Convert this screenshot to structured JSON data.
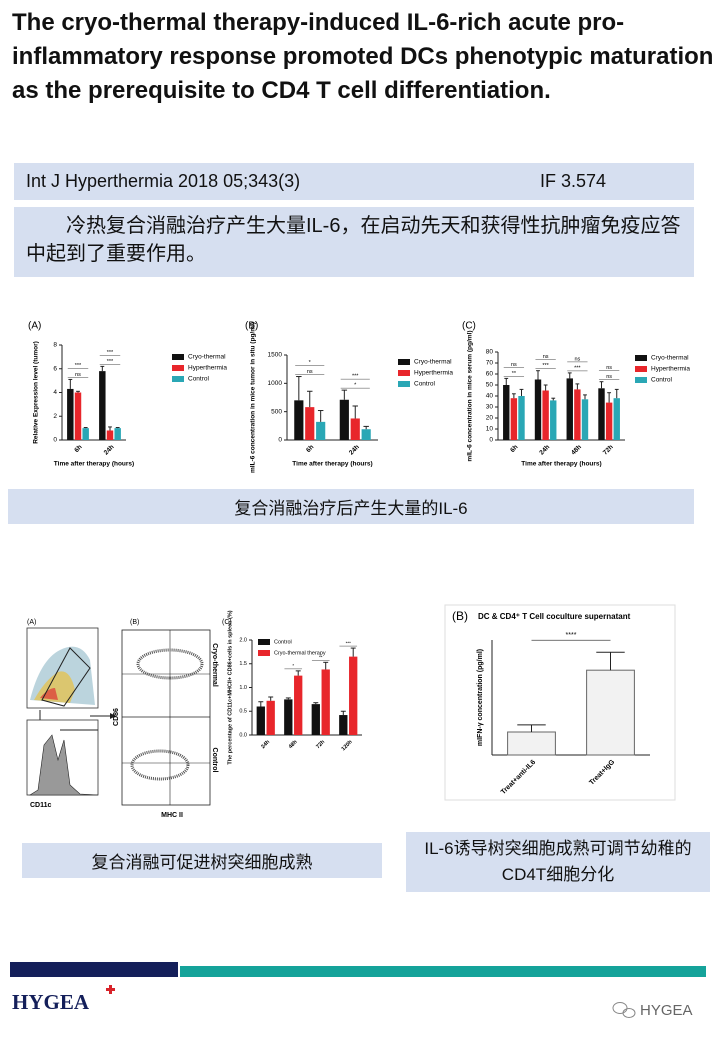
{
  "title": "The cryo-thermal therapy-induced IL-6-rich acute pro-inflammatory response promoted DCs phenotypic maturation as the prerequisite to CD4 T cell differentiation.",
  "citation": {
    "journal": "Int J Hyperthermia 2018 05;343(3)",
    "impact": "IF 3.574"
  },
  "summary": "冷热复合消融治疗产生大量IL-6，在启动先天和获得性抗肿瘤免疫应答中起到了重要作用。",
  "figure1": {
    "chart_data": [
      {
        "type": "bar",
        "panel_label": "(A)",
        "y_label": "Relative Expression level (tumor)",
        "x_label": "Time after therapy (hours)",
        "categories": [
          "6h",
          "24h"
        ],
        "series": [
          {
            "name": "Cryo-thermal",
            "color": "#111111",
            "values": [
              4.3,
              5.8
            ],
            "errors": [
              0.8,
              0.4
            ]
          },
          {
            "name": "Hyperthermia",
            "color": "#e8262b",
            "values": [
              4.0,
              0.8
            ],
            "errors": [
              0.1,
              0.3
            ]
          },
          {
            "name": "Control",
            "color": "#2aa7b5",
            "values": [
              1.0,
              1.0
            ],
            "errors": [
              0.05,
              0.05
            ]
          }
        ],
        "ylim": [
          0,
          8
        ],
        "yticks": [
          0,
          2,
          4,
          6,
          8
        ],
        "significance": [
          [
            "ns",
            "***"
          ],
          [
            "***",
            "***"
          ]
        ]
      },
      {
        "type": "bar",
        "panel_label": "(B)",
        "y_label": "mIL-6 concentration in mice tumor in situ (pg/ml)",
        "x_label": "Time after therapy (hours)",
        "categories": [
          "6h",
          "24h"
        ],
        "series": [
          {
            "name": "Cryo-thermal",
            "color": "#111111",
            "values": [
              700,
              710
            ],
            "errors": [
              420,
              170
            ]
          },
          {
            "name": "Hyperthermia",
            "color": "#e8262b",
            "values": [
              580,
              380
            ],
            "errors": [
              280,
              220
            ]
          },
          {
            "name": "Control",
            "color": "#2aa7b5",
            "values": [
              320,
              190
            ],
            "errors": [
              200,
              50
            ]
          }
        ],
        "ylim": [
          0,
          1500
        ],
        "yticks": [
          0,
          500,
          1000,
          1500
        ],
        "significance": [
          [
            "ns",
            "*"
          ],
          [
            "*",
            "***"
          ]
        ]
      },
      {
        "type": "bar",
        "panel_label": "(C)",
        "y_label": "mIL-6 concentration in mice serum (pg/ml)",
        "x_label": "Time after therapy (hours)",
        "categories": [
          "6h",
          "24h",
          "48h",
          "72h"
        ],
        "series": [
          {
            "name": "Cryo-thermal",
            "color": "#111111",
            "values": [
              50,
              55,
              56,
              47
            ],
            "errors": [
              6,
              8,
              5,
              6
            ]
          },
          {
            "name": "Hyperthermia",
            "color": "#e8262b",
            "values": [
              38,
              45,
              46,
              34
            ],
            "errors": [
              4,
              5,
              5,
              9
            ]
          },
          {
            "name": "Control",
            "color": "#2aa7b5",
            "values": [
              40,
              36,
              37,
              38
            ],
            "errors": [
              6,
              2,
              4,
              8
            ]
          }
        ],
        "ylim": [
          0,
          80
        ],
        "yticks": [
          0,
          10,
          20,
          30,
          40,
          50,
          60,
          70,
          80
        ],
        "significance": [
          [
            "**",
            "ns"
          ],
          [
            "***",
            "ns"
          ],
          [
            "***",
            "ns"
          ],
          [
            "ns",
            "ns"
          ]
        ]
      }
    ]
  },
  "caption1": "复合消融治疗后产生大量的IL-6",
  "figure2": {
    "panel_a": {
      "label": "(A)",
      "x_label": "CD11c"
    },
    "panel_b": {
      "label": "(B)",
      "y_label": "CD86",
      "x_label": "MHC II",
      "rows": [
        "Cryo-thermal",
        "Control"
      ]
    },
    "chart_data": {
      "type": "bar",
      "panel_label": "(C)",
      "y_label": "The percentage of CD11c+MHCII+ CD86+cells in spleen (%)",
      "categories": [
        "24h",
        "48h",
        "72h",
        "120h"
      ],
      "series": [
        {
          "name": "Control",
          "color": "#111111",
          "values": [
            0.6,
            0.75,
            0.65,
            0.42
          ],
          "errors": [
            0.1,
            0.03,
            0.03,
            0.08
          ]
        },
        {
          "name": "Cryo-thermal therapy",
          "color": "#e8262b",
          "values": [
            0.72,
            1.25,
            1.38,
            1.65
          ],
          "errors": [
            0.08,
            0.1,
            0.15,
            0.18
          ]
        }
      ],
      "ylim": [
        0,
        2
      ],
      "yticks": [
        {
          "value": 0,
          "label": "0.0"
        },
        0.5,
        {
          "value": 1,
          "label": "1.0"
        },
        1.5,
        {
          "value": 2,
          "label": "2.0"
        }
      ],
      "significance": [
        null,
        [
          "*"
        ],
        [
          "**"
        ],
        [
          "***"
        ]
      ]
    }
  },
  "caption2": "复合消融可促进树突细胞成熟",
  "figure3": {
    "chart_data": {
      "type": "bar",
      "panel_label": "(B)",
      "title": "DC & CD4⁺ T Cell coculture supernatant",
      "y_label": "mIFN-γ concentration (pg/ml)",
      "categories": [
        "Treat+anti-IL6",
        "Treat+IgG"
      ],
      "series": [
        {
          "name": "mIFN-γ",
          "color": "#f2f2f2",
          "values": [
            32,
            118
          ],
          "errors": [
            10,
            25
          ]
        }
      ],
      "ylim": [
        0,
        160
      ],
      "comparison": "****"
    }
  },
  "caption3": "IL-6诱导树突细胞成熟可调节幼稚的CD4T细胞分化",
  "footer": {
    "logo": "HYGEA",
    "watermark": "HYGEA"
  }
}
